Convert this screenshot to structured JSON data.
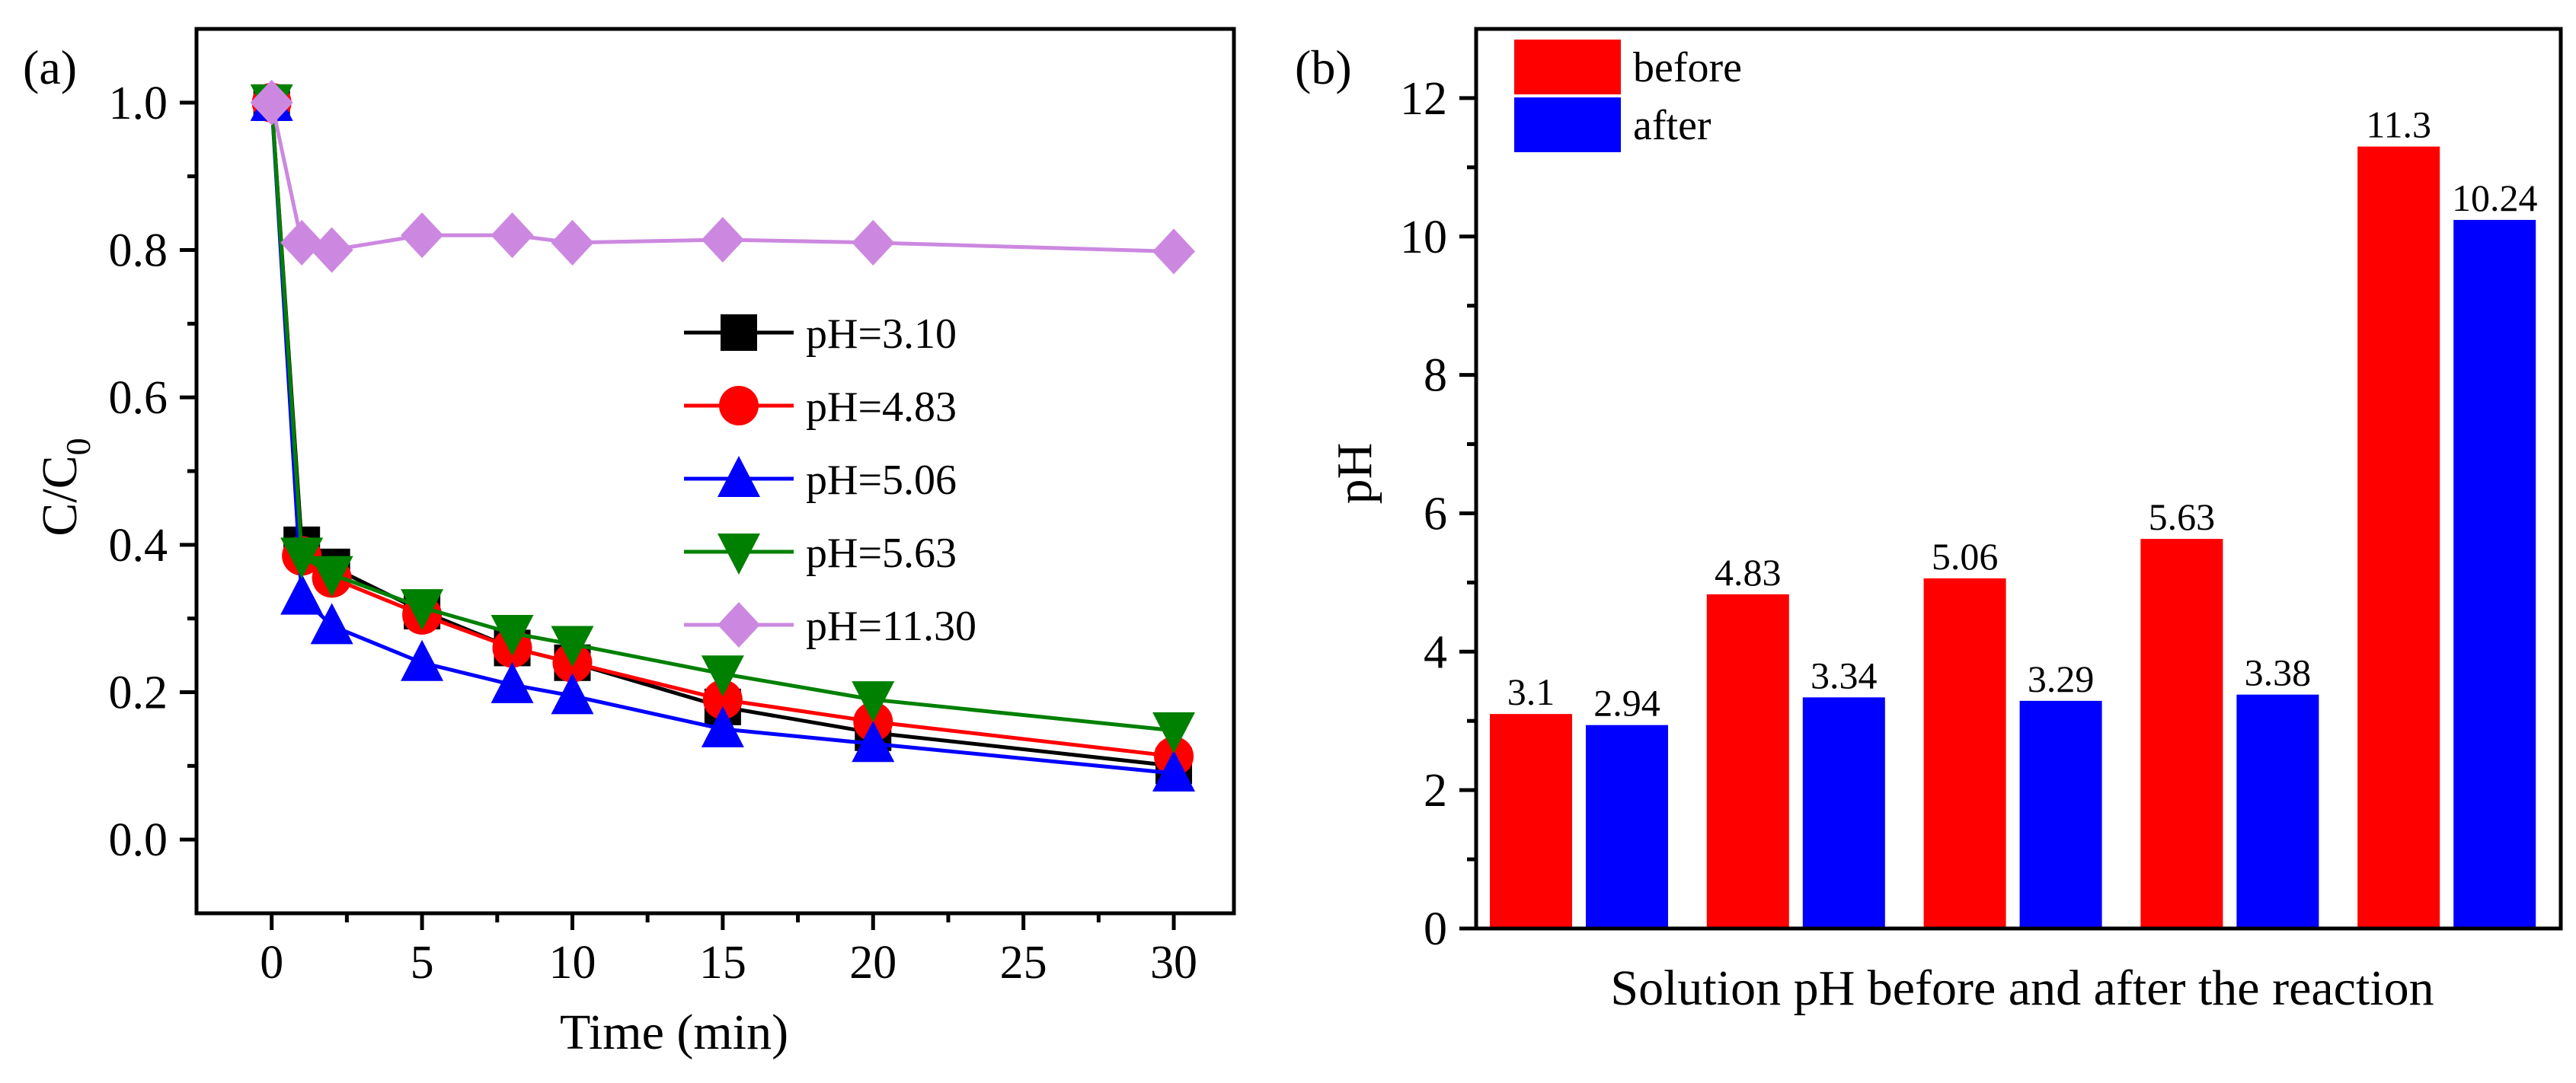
{
  "chart_data": [
    {
      "type": "line",
      "panel_label": "(a)",
      "xlabel": "Time (min)",
      "ylabel_main": "C/C",
      "ylabel_sub": "0",
      "xlim": [
        -2.5,
        32
      ],
      "ylim": [
        -0.1,
        1.1
      ],
      "xticks": [
        0,
        5,
        10,
        15,
        20,
        25,
        30
      ],
      "xtick_labels": [
        "0",
        "5",
        "10",
        "15",
        "20",
        "25",
        "30"
      ],
      "yticks": [
        0.0,
        0.2,
        0.4,
        0.6,
        0.8,
        1.0
      ],
      "ytick_labels": [
        "0.0",
        "0.2",
        "0.4",
        "0.6",
        "0.8",
        "1.0"
      ],
      "legend_position": "center-right",
      "x": [
        0,
        1,
        2,
        5,
        8,
        10,
        15,
        20,
        30
      ],
      "series": [
        {
          "name": "pH=3.10",
          "color": "#000000",
          "marker": "square",
          "values": [
            1.0,
            0.4,
            0.37,
            0.31,
            0.26,
            0.24,
            0.18,
            0.145,
            0.1
          ]
        },
        {
          "name": "pH=4.83",
          "color": "#ff0000",
          "marker": "circle",
          "values": [
            1.0,
            0.385,
            0.355,
            0.305,
            0.26,
            0.24,
            0.19,
            0.16,
            0.113
          ]
        },
        {
          "name": "pH=5.06",
          "color": "#0000ff",
          "marker": "triangle-up",
          "values": [
            1.0,
            0.33,
            0.29,
            0.24,
            0.21,
            0.195,
            0.15,
            0.13,
            0.09
          ]
        },
        {
          "name": "pH=5.63",
          "color": "#008000",
          "marker": "triangle-down",
          "values": [
            1.0,
            0.385,
            0.36,
            0.315,
            0.28,
            0.265,
            0.225,
            0.19,
            0.148
          ]
        },
        {
          "name": "pH=11.30",
          "color": "#cc88e0",
          "marker": "diamond",
          "values": [
            1.0,
            0.81,
            0.8,
            0.82,
            0.82,
            0.81,
            0.814,
            0.81,
            0.798
          ]
        }
      ]
    },
    {
      "type": "bar",
      "panel_label": "(b)",
      "xlabel": "Solution pH before and after the reaction",
      "ylabel": "pH",
      "ylim": [
        0,
        13
      ],
      "yticks": [
        0,
        2,
        4,
        6,
        8,
        10,
        12
      ],
      "ytick_labels": [
        "0",
        "2",
        "4",
        "6",
        "8",
        "10",
        "12"
      ],
      "legend_position": "top-left",
      "series": [
        {
          "name": "before",
          "color": "#ff0000",
          "values": [
            3.1,
            4.83,
            5.06,
            5.63,
            11.3
          ],
          "labels": [
            "3.1",
            "4.83",
            "5.06",
            "5.63",
            "11.3"
          ]
        },
        {
          "name": "after",
          "color": "#0000ff",
          "values": [
            2.94,
            3.34,
            3.29,
            3.38,
            10.24
          ],
          "labels": [
            "2.94",
            "3.34",
            "3.29",
            "3.38",
            "10.24"
          ]
        }
      ]
    }
  ]
}
